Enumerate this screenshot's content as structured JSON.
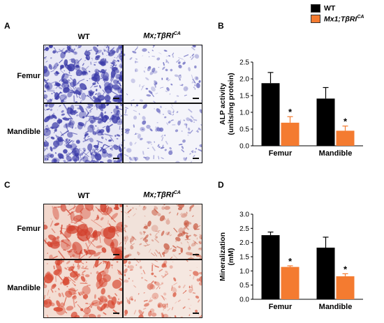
{
  "panels": {
    "a": "A",
    "b": "B",
    "c": "C",
    "d": "D"
  },
  "legend": {
    "wt": {
      "label": "WT",
      "color": "#000000"
    },
    "mx1": {
      "label": "Mx1;TβRI",
      "sup": "CA",
      "color": "#f47b30"
    }
  },
  "image_panels": {
    "top": {
      "col_wt": "WT",
      "col_mx": "Mx;TβRI",
      "col_mx_sup": "CA",
      "row1": "Femur",
      "row2": "Mandible",
      "stain": "blue"
    },
    "bottom": {
      "col_wt": "WT",
      "col_mx": "Mx;TβRI",
      "col_mx_sup": "CA",
      "row1": "Femur",
      "row2": "Mandible",
      "stain": "red"
    }
  },
  "chart_data": [
    {
      "type": "bar",
      "ylabel_line1": "ALP activity",
      "ylabel_line2": "(units/mg protein)",
      "categories": [
        "Femur",
        "Mandible"
      ],
      "series": [
        {
          "name": "WT",
          "values": [
            1.87,
            1.41
          ],
          "errors": [
            0.32,
            0.33
          ],
          "color": "#000000"
        },
        {
          "name": "Mx1;TβRI",
          "values": [
            0.69,
            0.45
          ],
          "errors": [
            0.18,
            0.14
          ],
          "color": "#f47b30"
        }
      ],
      "significance": [
        "*",
        "*"
      ],
      "ylim": [
        0,
        2.5
      ],
      "yticks": [
        "0.0",
        "0.5",
        "1.0",
        "1.5",
        "2.0",
        "2.5"
      ]
    },
    {
      "type": "bar",
      "ylabel_line1": "Mineralization",
      "ylabel_line2": "(mM)",
      "categories": [
        "Femur",
        "Mandible"
      ],
      "series": [
        {
          "name": "WT",
          "values": [
            2.26,
            1.82
          ],
          "errors": [
            0.11,
            0.37
          ],
          "color": "#000000"
        },
        {
          "name": "Mx1;TβRI",
          "values": [
            1.14,
            0.81
          ],
          "errors": [
            0.04,
            0.09
          ],
          "color": "#f47b30"
        }
      ],
      "significance": [
        "*",
        "*"
      ],
      "ylim": [
        0,
        3.0
      ],
      "yticks": [
        "0.0",
        "0.5",
        "1.0",
        "1.5",
        "2.0",
        "2.5",
        "3.0"
      ]
    }
  ]
}
